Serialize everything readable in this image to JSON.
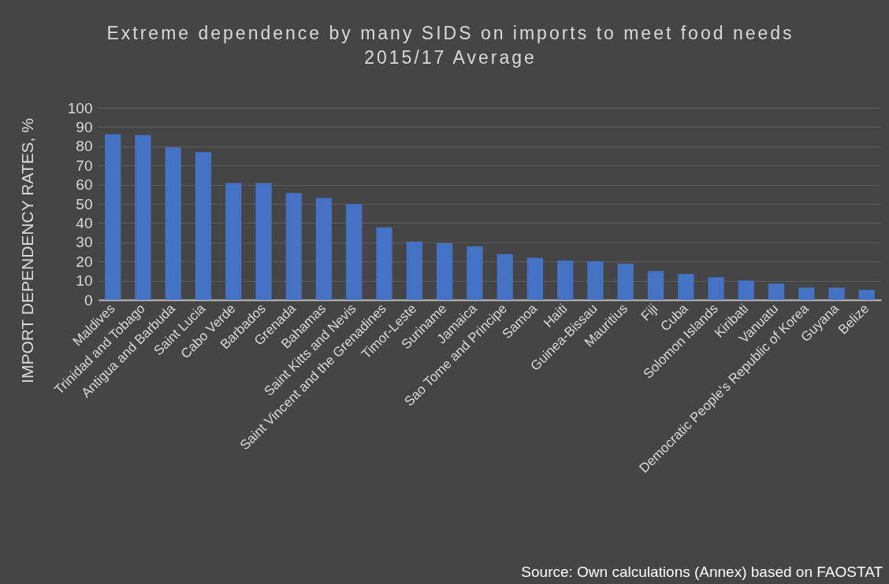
{
  "chart_data": {
    "type": "bar",
    "title": "Extreme dependence by many SIDS on imports to meet food needs",
    "subtitle": "2015/17 Average",
    "ylabel": "IMPORT DEPENDENCY RATES, %",
    "annotations": [
      "Source: Own calculations (Annex) based on FAOSTAT"
    ],
    "categories": [
      "Maldives",
      "Trinidad and Tobago",
      "Antigua and Barbuda",
      "Saint Lucia",
      "Cabo Verde",
      "Barbados",
      "Grenada",
      "Bahamas",
      "Saint Kitts and Nevis",
      "Saint Vincent and the Grenadines",
      "Timor-Leste",
      "Suriname",
      "Jamaica",
      "Sao Tome and Principe",
      "Samoa",
      "Haiti",
      "Guinea-Bissau",
      "Mauritius",
      "Fiji",
      "Cuba",
      "Solomon Islands",
      "Kiribati",
      "Vanuatu",
      "Democratic People's Republic of Korea",
      "Guyana",
      "Belize"
    ],
    "values": [
      86.3,
      85.9,
      79.4,
      76.9,
      60.9,
      60.9,
      55.6,
      53.1,
      49.9,
      37.8,
      30.3,
      29.5,
      27.9,
      23.9,
      21.8,
      20.5,
      20.1,
      18.9,
      15.1,
      13.5,
      11.8,
      10.1,
      8.5,
      6.4,
      6.4,
      5.2
    ],
    "color": "#4472c4",
    "ylim": [
      0,
      100
    ],
    "yticks": [
      0,
      10,
      20,
      30,
      40,
      50,
      60,
      70,
      80,
      90,
      100
    ],
    "grid": "y"
  }
}
